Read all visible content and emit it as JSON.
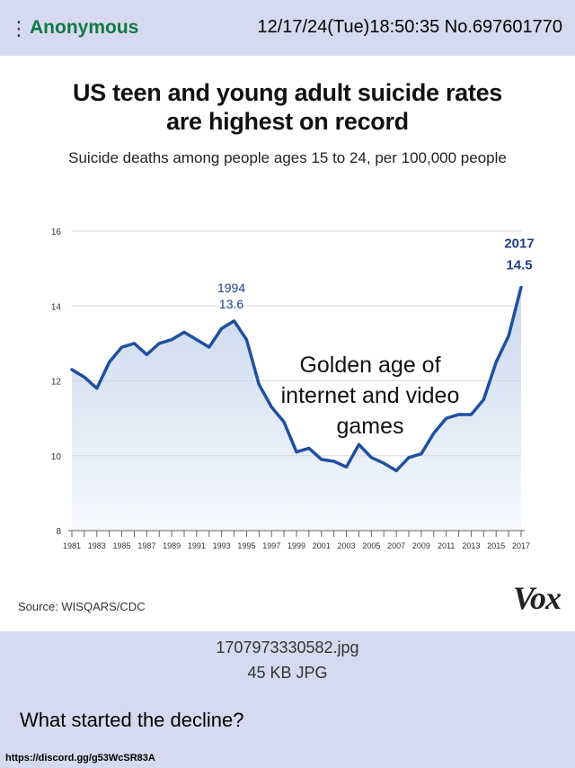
{
  "post": {
    "menu_icon": "vertical-dots-icon",
    "name": "Anonymous",
    "datetime": "12/17/24(Tue)18:50:35",
    "number": "No.697601770",
    "comment": "What started the decline?",
    "footer_link": "https://discord.gg/g53WcSR83A"
  },
  "file": {
    "name": "1707973330582.jpg",
    "size": "45 KB JPG"
  },
  "image": {
    "source": "Source: WISQARS/CDC",
    "logo": "Vox"
  },
  "colors": {
    "line": "#1f4fa0",
    "fill": "#c6d6ee",
    "name": "#117743",
    "post_bg": "#d6daf0"
  },
  "chart_data": {
    "type": "area",
    "title_lines": [
      "US teen and young adult suicide rates",
      "are highest on record"
    ],
    "subtitle": "Suicide deaths among people ages 15 to 24, per 100,000 people",
    "xlabel": "",
    "ylabel": "",
    "xlim": [
      1981,
      2017
    ],
    "ylim": [
      8,
      16
    ],
    "y_ticks": [
      16,
      14,
      12,
      10,
      8
    ],
    "x_ticks": [
      1981,
      1983,
      1985,
      1987,
      1989,
      1991,
      1993,
      1995,
      1997,
      1999,
      2001,
      2003,
      2005,
      2007,
      2009,
      2011,
      2013,
      2015,
      2017
    ],
    "grid": true,
    "x": [
      1981,
      1982,
      1983,
      1984,
      1985,
      1986,
      1987,
      1988,
      1989,
      1990,
      1991,
      1992,
      1993,
      1994,
      1995,
      1996,
      1997,
      1998,
      1999,
      2000,
      2001,
      2002,
      2003,
      2004,
      2005,
      2006,
      2007,
      2008,
      2009,
      2010,
      2011,
      2012,
      2013,
      2014,
      2015,
      2016,
      2017
    ],
    "values": [
      12.3,
      12.1,
      11.8,
      12.5,
      12.9,
      13.0,
      12.7,
      13.0,
      13.1,
      13.3,
      13.1,
      12.9,
      13.4,
      13.6,
      13.1,
      11.9,
      11.3,
      10.9,
      10.1,
      10.2,
      9.9,
      9.85,
      9.7,
      10.3,
      9.95,
      9.8,
      9.6,
      9.95,
      10.05,
      10.6,
      11.0,
      11.1,
      11.1,
      11.5,
      12.5,
      13.2,
      14.5
    ],
    "annotations": [
      {
        "year_label": "1994",
        "value_label": "13.6",
        "x": 1994,
        "y": 13.6
      },
      {
        "year_label": "2017",
        "value_label": "14.5",
        "x": 2017,
        "y": 14.5
      }
    ],
    "overlay_text": [
      "Golden age of",
      "internet and video",
      "games"
    ]
  }
}
